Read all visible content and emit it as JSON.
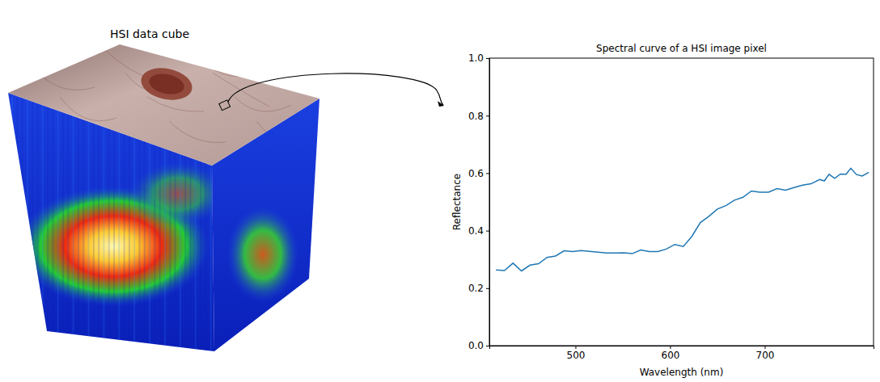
{
  "cube_title": "HSI data cube",
  "chart_data": {
    "type": "line",
    "title": "Spectral curve of a HSI image pixel",
    "x_label": "Wavelength (nm)",
    "y_label": "Reflectance",
    "color": "#1f77b4",
    "x": [
      416,
      425,
      434,
      443,
      452,
      461,
      470,
      479,
      488,
      497,
      506,
      515,
      524,
      533,
      542,
      551,
      560,
      569,
      578,
      587,
      596,
      605,
      614,
      623,
      632,
      641,
      650,
      659,
      668,
      677,
      686,
      695,
      704,
      713,
      722,
      731,
      740,
      749,
      758,
      763,
      768,
      774,
      780,
      786,
      791,
      797,
      803,
      810
    ],
    "values": [
      0.263,
      0.261,
      0.287,
      0.26,
      0.28,
      0.285,
      0.307,
      0.312,
      0.33,
      0.327,
      0.331,
      0.328,
      0.325,
      0.322,
      0.322,
      0.323,
      0.32,
      0.333,
      0.327,
      0.327,
      0.336,
      0.352,
      0.345,
      0.38,
      0.428,
      0.45,
      0.475,
      0.487,
      0.506,
      0.516,
      0.538,
      0.534,
      0.534,
      0.546,
      0.541,
      0.55,
      0.558,
      0.563,
      0.578,
      0.573,
      0.596,
      0.582,
      0.597,
      0.596,
      0.617,
      0.595,
      0.59,
      0.603
    ],
    "xlim": [
      409,
      815
    ],
    "ylim": [
      0,
      1
    ],
    "xticks": [
      500,
      600,
      700
    ],
    "yticks": [
      {
        "value": 0,
        "label": "0.0"
      },
      {
        "value": 0.2,
        "label": "0.2"
      },
      {
        "value": 0.4,
        "label": "0.4"
      },
      {
        "value": 0.6,
        "label": "0.6"
      },
      {
        "value": 0.8,
        "label": "0.8"
      },
      {
        "value": 1,
        "label": "1.0"
      }
    ],
    "grid": false
  }
}
